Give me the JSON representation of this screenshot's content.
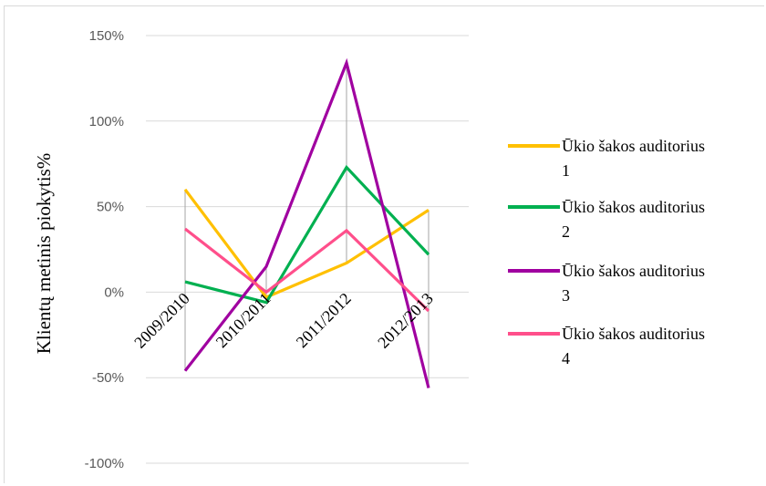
{
  "chart_data": {
    "type": "line",
    "title": "",
    "xlabel": "",
    "ylabel": "Klientų metinis piokytis%",
    "categories": [
      "2009/2010",
      "2010/2011",
      "2011/2012",
      "2012/2013"
    ],
    "y_tick_labels": [
      "150%",
      "100%",
      "50%",
      "0%",
      "-50%",
      "-100%"
    ],
    "y_ticks": [
      150,
      100,
      50,
      0,
      -50,
      -100
    ],
    "ylim": [
      -100,
      150
    ],
    "grid": true,
    "legend_position": "right",
    "series": [
      {
        "name": "Ūkio šakos auditorius 1",
        "values": [
          60,
          -3,
          17,
          48
        ],
        "color": "#ffc000"
      },
      {
        "name": "Ūkio šakos auditorius 2",
        "values": [
          6,
          -6,
          73,
          22
        ],
        "color": "#00b050"
      },
      {
        "name": "Ūkio šakos auditorius 3",
        "values": [
          -46,
          15,
          134,
          -56
        ],
        "color": "#a000a0"
      },
      {
        "name": "Ūkio šakos auditorius 4",
        "values": [
          37,
          0,
          36,
          -11
        ],
        "color": "#ff4f8b"
      }
    ]
  }
}
